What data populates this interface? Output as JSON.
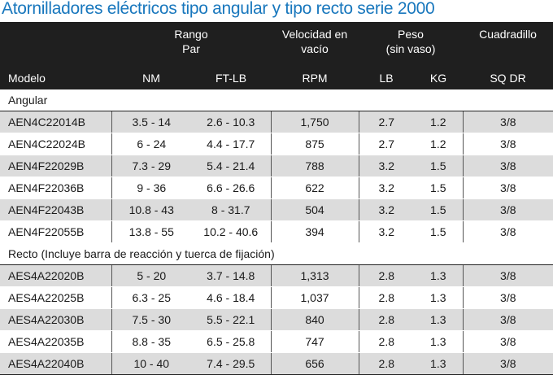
{
  "title": "Atornilladores eléctricos tipo angular y tipo recto serie 2000",
  "header": {
    "rango_par_line1": "Rango",
    "rango_par_line2": "Par",
    "velocidad_line1": "Velocidad en",
    "velocidad_line2": "vacío",
    "peso_line1": "Peso",
    "peso_line2": "(sin vaso)",
    "cuadradillo": "Cuadradillo",
    "modelo": "Modelo",
    "nm": "NM",
    "ftlb": "FT-LB",
    "rpm": "RPM",
    "lb": "LB",
    "kg": "KG",
    "sqdr": "SQ DR"
  },
  "groups": [
    {
      "label": "Angular",
      "rows": [
        {
          "model": "AEN4C22014B",
          "nm": "3.5 - 14",
          "ftlb": "2.6 - 10.3",
          "rpm": "1,750",
          "lb": "2.7",
          "kg": "1.2",
          "sq": "3/8"
        },
        {
          "model": "AEN4C22024B",
          "nm": "6 - 24",
          "ftlb": "4.4 - 17.7",
          "rpm": "875",
          "lb": "2.7",
          "kg": "1.2",
          "sq": "3/8"
        },
        {
          "model": "AEN4F22029B",
          "nm": "7.3 - 29",
          "ftlb": "5.4 - 21.4",
          "rpm": "788",
          "lb": "3.2",
          "kg": "1.5",
          "sq": "3/8"
        },
        {
          "model": "AEN4F22036B",
          "nm": "9 - 36",
          "ftlb": "6.6 - 26.6",
          "rpm": "622",
          "lb": "3.2",
          "kg": "1.5",
          "sq": "3/8"
        },
        {
          "model": "AEN4F22043B",
          "nm": "10.8 - 43",
          "ftlb": "8 - 31.7",
          "rpm": "504",
          "lb": "3.2",
          "kg": "1.5",
          "sq": "3/8"
        },
        {
          "model": "AEN4F22055B",
          "nm": "13.8 - 55",
          "ftlb": "10.2 - 40.6",
          "rpm": "394",
          "lb": "3.2",
          "kg": "1.5",
          "sq": "3/8"
        }
      ]
    },
    {
      "label": "Recto (Incluye barra de reacción y tuerca de fijación)",
      "rows": [
        {
          "model": "AES4A22020B",
          "nm": "5 - 20",
          "ftlb": "3.7 - 14.8",
          "rpm": "1,313",
          "lb": "2.8",
          "kg": "1.3",
          "sq": "3/8"
        },
        {
          "model": "AES4A22025B",
          "nm": "6.3 - 25",
          "ftlb": "4.6 - 18.4",
          "rpm": "1,037",
          "lb": "2.8",
          "kg": "1.3",
          "sq": "3/8"
        },
        {
          "model": "AES4A22030B",
          "nm": "7.5 - 30",
          "ftlb": "5.5 - 22.1",
          "rpm": "840",
          "lb": "2.8",
          "kg": "1.3",
          "sq": "3/8"
        },
        {
          "model": "AES4A22035B",
          "nm": "8.8 - 35",
          "ftlb": "6.5 - 25.8",
          "rpm": "747",
          "lb": "2.8",
          "kg": "1.3",
          "sq": "3/8"
        },
        {
          "model": "AES4A22040B",
          "nm": "10 - 40",
          "ftlb": "7.4 - 29.5",
          "rpm": "656",
          "lb": "2.8",
          "kg": "1.3",
          "sq": "3/8"
        }
      ]
    }
  ]
}
